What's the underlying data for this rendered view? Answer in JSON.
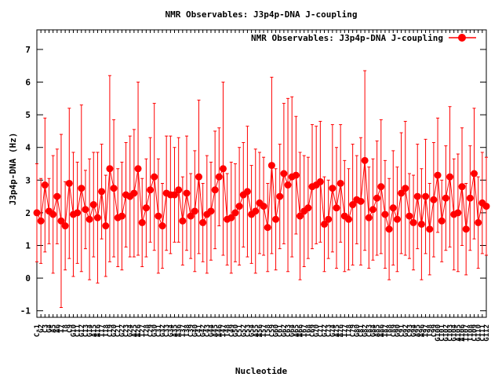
{
  "chart_data": {
    "type": "line",
    "title": "NMR Observables: J3p4p-DNA J-coupling",
    "xlabel": "Nucleotide",
    "ylabel": "J3p4p-DNA (Hz)",
    "ylim": [
      -1.2,
      7.6
    ],
    "yticks": [
      -1,
      0,
      1,
      2,
      3,
      4,
      5,
      6,
      7
    ],
    "grid": false,
    "legend_position": "top-right",
    "colors": {
      "series": "#ff0000",
      "axis": "#000000",
      "background": "#ffffff"
    },
    "categories": [
      "C-1",
      "G2",
      "C3",
      "G4",
      "A5",
      "A6",
      "T7",
      "T8",
      "C9",
      "G10",
      "C11",
      "G12",
      "C13",
      "G14",
      "A15",
      "A16",
      "T17",
      "T18",
      "C19",
      "G20",
      "C21",
      "G22",
      "C23",
      "G24",
      "A25",
      "A26",
      "T27",
      "T28",
      "C29",
      "G30",
      "C31",
      "G32",
      "C33",
      "G34",
      "A35",
      "A36",
      "T37",
      "T38",
      "C39",
      "G40",
      "C41",
      "G42",
      "C43",
      "G44",
      "A45",
      "A46",
      "T47",
      "T48",
      "C49",
      "G50",
      "C51",
      "G52",
      "C53",
      "G54",
      "A55",
      "A56",
      "T57",
      "T58",
      "C59",
      "G60",
      "C61",
      "G62",
      "C63",
      "G64",
      "A65",
      "A66",
      "T67",
      "T68",
      "C69",
      "G70",
      "C71",
      "G72",
      "C73",
      "G74",
      "A75",
      "A76",
      "T77",
      "T78",
      "C79",
      "G80",
      "C81",
      "G82",
      "C83",
      "G84",
      "A85",
      "A86",
      "T87",
      "T88",
      "C89",
      "G90",
      "C91",
      "G92",
      "C93",
      "G94",
      "A95",
      "A96",
      "T97",
      "T98",
      "C99",
      "G100",
      "C101",
      "G102",
      "C103",
      "G104",
      "A105",
      "A106",
      "T107",
      "T108",
      "C109",
      "G110",
      "C111",
      "G112"
    ],
    "series": [
      {
        "name": "NMR Observables: J3p4p-DNA J-coupling",
        "values": [
          2.0,
          1.75,
          2.85,
          2.05,
          1.95,
          2.5,
          1.75,
          1.6,
          2.9,
          1.95,
          2.0,
          2.75,
          2.1,
          1.8,
          2.25,
          1.85,
          2.65,
          1.6,
          3.35,
          2.75,
          1.85,
          1.9,
          2.55,
          2.5,
          2.6,
          3.35,
          1.7,
          2.15,
          2.7,
          3.1,
          1.9,
          1.6,
          2.6,
          2.55,
          2.55,
          2.7,
          1.75,
          2.6,
          1.9,
          2.05,
          3.1,
          1.7,
          1.95,
          2.05,
          2.7,
          3.1,
          3.35,
          1.8,
          1.85,
          2.0,
          2.2,
          2.55,
          2.65,
          1.95,
          2.05,
          2.3,
          2.2,
          1.55,
          3.45,
          1.8,
          2.5,
          3.2,
          2.85,
          3.1,
          3.15,
          1.9,
          2.05,
          2.15,
          2.8,
          2.85,
          2.95,
          1.65,
          1.8,
          2.75,
          2.15,
          2.9,
          1.9,
          1.8,
          2.25,
          2.4,
          2.35,
          3.6,
          1.85,
          2.1,
          2.45,
          2.8,
          1.95,
          1.5,
          2.15,
          1.8,
          2.6,
          2.75,
          1.9,
          1.7,
          2.5,
          1.65,
          2.5,
          1.5,
          2.4,
          3.15,
          1.75,
          2.45,
          3.1,
          1.95,
          2.0,
          2.8,
          1.5,
          2.45,
          3.2,
          1.7,
          2.3,
          2.2
        ],
        "errors": [
          1.5,
          1.3,
          2.05,
          1.0,
          1.8,
          1.45,
          2.65,
          1.35,
          2.3,
          1.9,
          1.55,
          2.55,
          1.2,
          1.85,
          1.6,
          2.0,
          1.45,
          1.55,
          2.85,
          2.1,
          1.5,
          1.65,
          1.6,
          1.85,
          1.95,
          2.65,
          1.35,
          1.5,
          1.6,
          2.25,
          1.75,
          1.3,
          1.75,
          1.8,
          1.45,
          1.6,
          1.35,
          1.75,
          1.3,
          1.85,
          2.35,
          1.2,
          1.8,
          1.5,
          1.8,
          1.5,
          2.65,
          1.4,
          1.7,
          1.5,
          1.8,
          1.6,
          2.0,
          1.5,
          1.9,
          1.55,
          1.5,
          1.35,
          2.7,
          1.55,
          1.6,
          2.15,
          2.65,
          2.45,
          1.8,
          1.95,
          1.7,
          1.55,
          1.9,
          1.8,
          1.85,
          1.45,
          1.2,
          1.95,
          1.85,
          1.8,
          1.7,
          1.55,
          1.85,
          1.35,
          1.95,
          2.75,
          1.55,
          1.55,
          1.75,
          2.05,
          1.65,
          1.55,
          1.75,
          1.6,
          1.85,
          2.05,
          1.3,
          1.45,
          1.6,
          1.7,
          1.75,
          1.4,
          1.75,
          1.75,
          1.25,
          1.6,
          2.15,
          1.7,
          1.8,
          1.8,
          1.4,
          1.6,
          2.0,
          1.4,
          1.55,
          1.5
        ]
      }
    ]
  }
}
